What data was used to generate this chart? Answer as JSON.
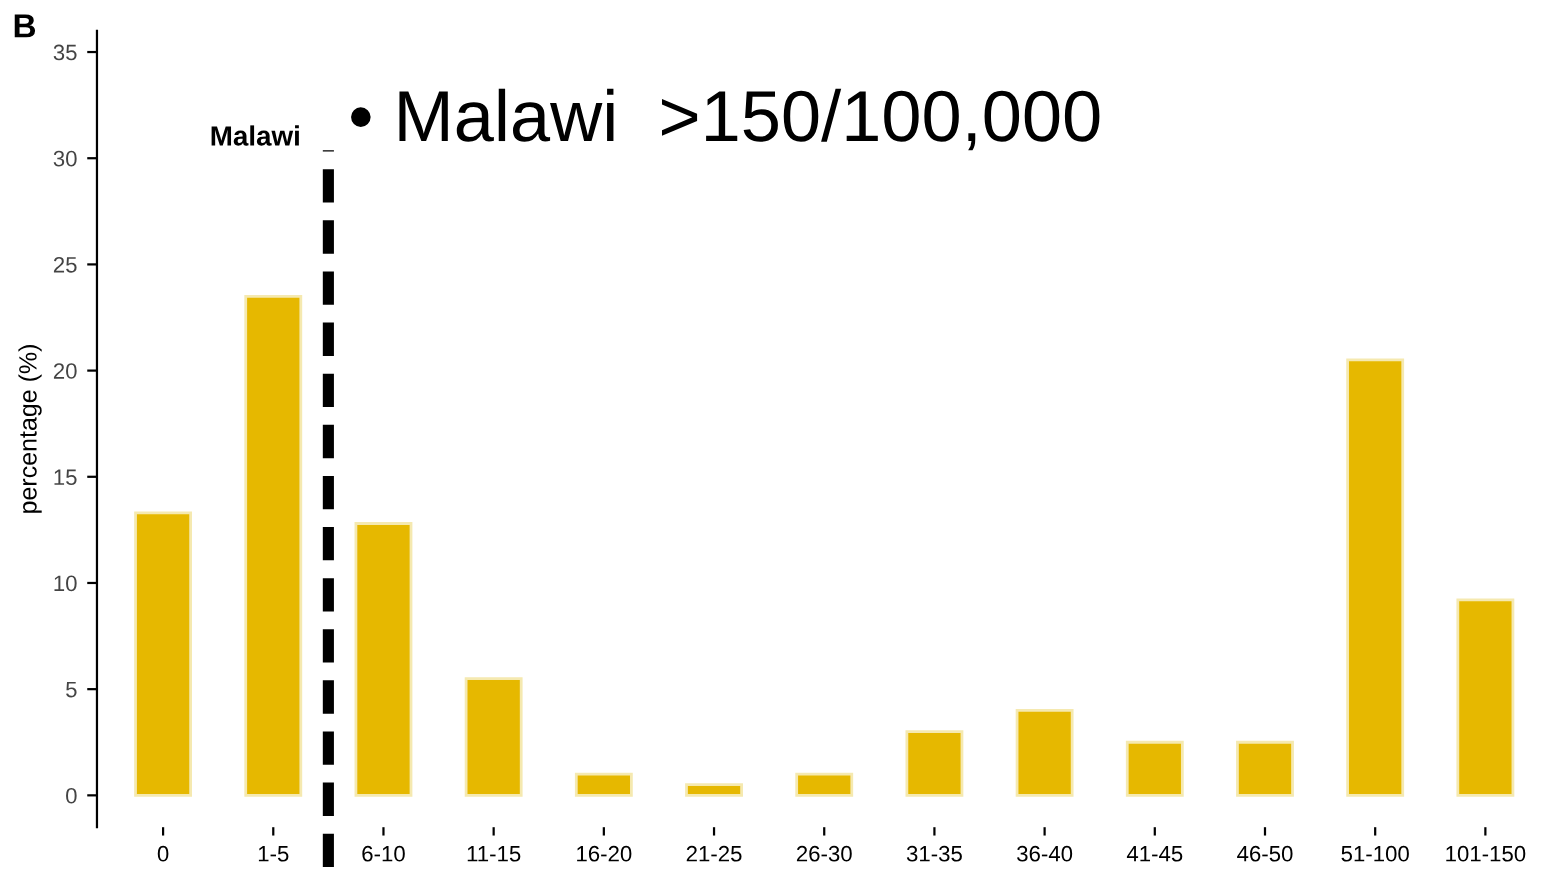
{
  "chart_data": {
    "type": "bar",
    "ylabel": "percentage (%)",
    "categories": [
      "0",
      "1-5",
      "6-10",
      "11-15",
      "16-20",
      "21-25",
      "26-30",
      "31-35",
      "36-40",
      "41-45",
      "46-50",
      "51-100",
      "101-150"
    ],
    "values": [
      13.3,
      23.5,
      12.8,
      5.5,
      1.0,
      0.5,
      1.0,
      3.0,
      4.0,
      2.5,
      2.5,
      20.5,
      9.2
    ],
    "color": "#e6b800",
    "ylim": [
      -1.5,
      36
    ],
    "yticks": [
      0,
      5,
      10,
      15,
      20,
      25,
      30,
      35
    ],
    "grid": false,
    "legend": false,
    "annotations": [
      "B",
      "• Malawi  >150/100,000",
      "Malawi"
    ]
  }
}
